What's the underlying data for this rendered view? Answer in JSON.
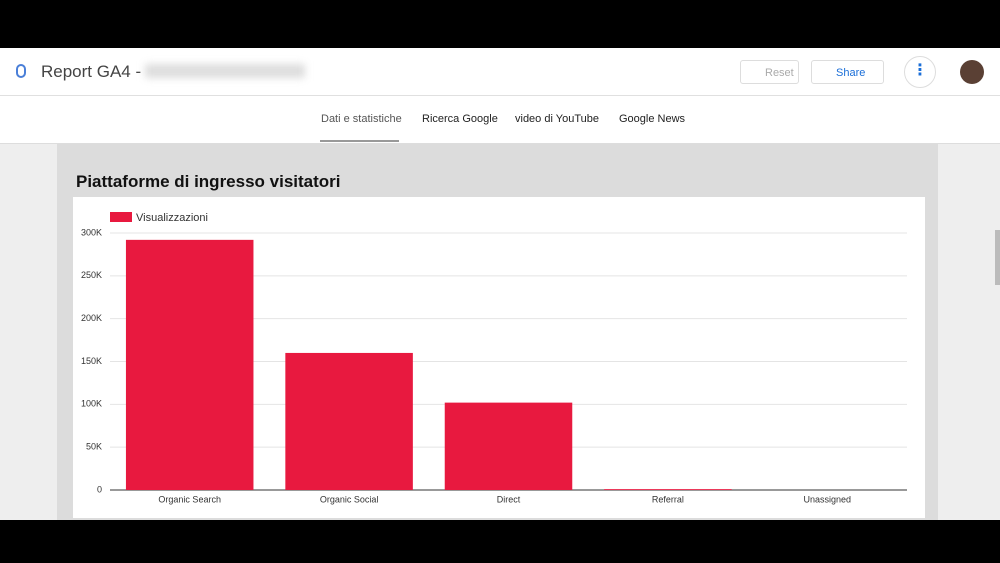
{
  "header": {
    "title": "Report GA4 -",
    "buttons": [
      "Reset",
      "Share"
    ]
  },
  "tabs": [
    "Dati e statistiche",
    "Ricerca Google",
    "video di YouTube",
    "Google News"
  ],
  "chart_data": {
    "type": "bar",
    "title": "Piattaforme di ingresso visitatori",
    "categories": [
      "Organic Search",
      "Organic Social",
      "Direct",
      "Referral",
      "Unassigned"
    ],
    "series": [
      {
        "name": "Visualizzazioni",
        "color": "#e8193f",
        "values": [
          292000,
          160000,
          102000,
          1000,
          0
        ]
      }
    ],
    "ylim": [
      0,
      300000
    ],
    "yticks": [
      0,
      {
        "value": 50000,
        "label": "50K"
      },
      {
        "value": 100000,
        "label": "100K"
      },
      {
        "value": 150000,
        "label": "150K"
      },
      {
        "value": 200000,
        "label": "200K"
      },
      {
        "value": 250000,
        "label": "250K"
      },
      {
        "value": 300000,
        "label": "300K"
      }
    ],
    "grid": true,
    "legend": "top-left"
  }
}
